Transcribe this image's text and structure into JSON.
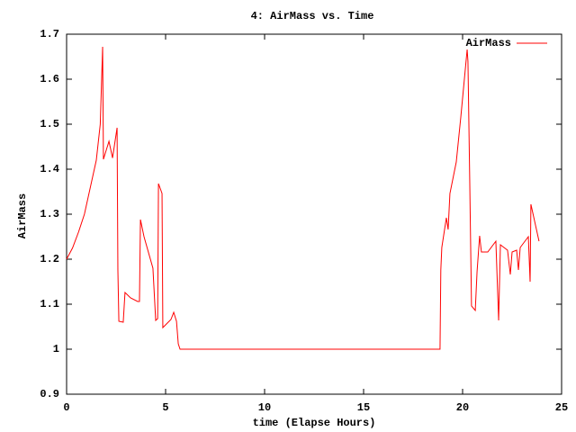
{
  "chart_data": {
    "type": "line",
    "title": "4: AirMass vs. Time",
    "xlabel": "time (Elapse Hours)",
    "ylabel": "AirMass",
    "x": [
      0,
      0.3,
      0.6,
      0.9,
      1.2,
      1.5,
      1.7,
      1.82,
      1.86,
      2.14,
      2.32,
      2.55,
      2.59,
      2.64,
      2.86,
      2.95,
      3.23,
      3.59,
      3.68,
      3.73,
      3.91,
      4.36,
      4.5,
      4.6,
      4.64,
      4.82,
      4.86,
      5.27,
      5.41,
      5.55,
      5.64,
      5.73,
      18.86,
      18.9,
      18.95,
      19.18,
      19.27,
      19.36,
      19.68,
      19.91,
      20.23,
      20.27,
      20.36,
      20.45,
      20.64,
      20.73,
      20.86,
      20.95,
      21.27,
      21.68,
      21.82,
      21.91,
      22.27,
      22.41,
      22.5,
      22.73,
      22.82,
      22.91,
      23.32,
      23.41,
      23.45,
      23.86
    ],
    "series": [
      {
        "name": "AirMass",
        "color": "#ff0000",
        "values": [
          1.2,
          1.225,
          1.26,
          1.3,
          1.36,
          1.42,
          1.5,
          1.672,
          1.422,
          1.462,
          1.425,
          1.492,
          1.176,
          1.062,
          1.06,
          1.126,
          1.114,
          1.106,
          1.106,
          1.288,
          1.25,
          1.18,
          1.064,
          1.068,
          1.368,
          1.346,
          1.048,
          1.066,
          1.082,
          1.062,
          1.012,
          1.0,
          1.0,
          1.176,
          1.226,
          1.292,
          1.266,
          1.346,
          1.416,
          1.516,
          1.666,
          1.64,
          1.376,
          1.096,
          1.086,
          1.172,
          1.252,
          1.216,
          1.216,
          1.24,
          1.064,
          1.232,
          1.22,
          1.166,
          1.216,
          1.22,
          1.176,
          1.226,
          1.25,
          1.15,
          1.322,
          1.24
        ]
      }
    ],
    "xlim": [
      0,
      25
    ],
    "ylim": [
      0.9,
      1.7
    ],
    "xticks": [
      0,
      5,
      10,
      15,
      20,
      25
    ],
    "yticks": [
      0.9,
      1,
      1.1,
      1.2,
      1.3,
      1.4,
      1.5,
      1.6,
      1.7
    ],
    "legend": "top-right"
  }
}
